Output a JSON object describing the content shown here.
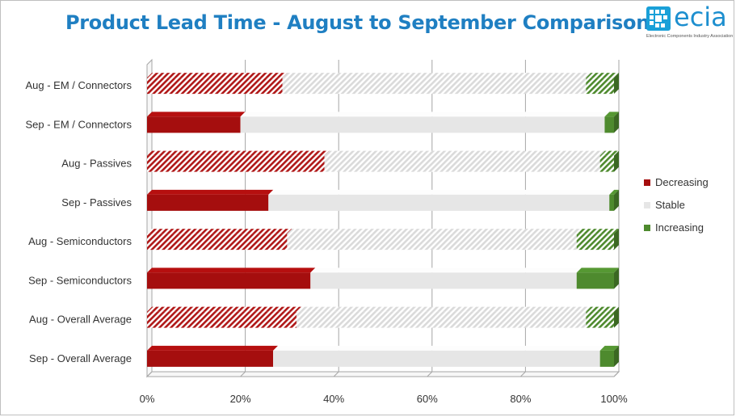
{
  "title": "Product Lead Time - August to September Comparison",
  "logo": {
    "name": "ecia",
    "tagline": "Electronic Components Industry Association"
  },
  "colors": {
    "decreasing": "#a50e0e",
    "stable": "#e6e6e6",
    "increasing": "#4e8a2e"
  },
  "chart_data": {
    "type": "bar",
    "orientation": "horizontal-stacked-100",
    "title": "Product Lead Time - August to September Comparison",
    "categories": [
      "Aug - EM / Connectors",
      "Sep - EM / Connectors",
      "Aug - Passives",
      "Sep - Passives",
      "Aug - Semiconductors",
      "Sep - Semiconductors",
      "Aug - Overall Average",
      "Sep - Overall Average"
    ],
    "patterned": [
      true,
      false,
      true,
      false,
      true,
      false,
      true,
      false
    ],
    "series": [
      {
        "name": "Decreasing",
        "values": [
          29,
          20,
          38,
          26,
          30,
          35,
          32,
          27
        ]
      },
      {
        "name": "Stable",
        "values": [
          65,
          78,
          59,
          73,
          62,
          57,
          62,
          70
        ]
      },
      {
        "name": "Increasing",
        "values": [
          6,
          2,
          3,
          1,
          8,
          8,
          6,
          3
        ]
      }
    ],
    "x_ticks": [
      "0%",
      "20%",
      "40%",
      "60%",
      "80%",
      "100%"
    ],
    "xlim": [
      0,
      100
    ],
    "grid": true,
    "legend_position": "right"
  }
}
